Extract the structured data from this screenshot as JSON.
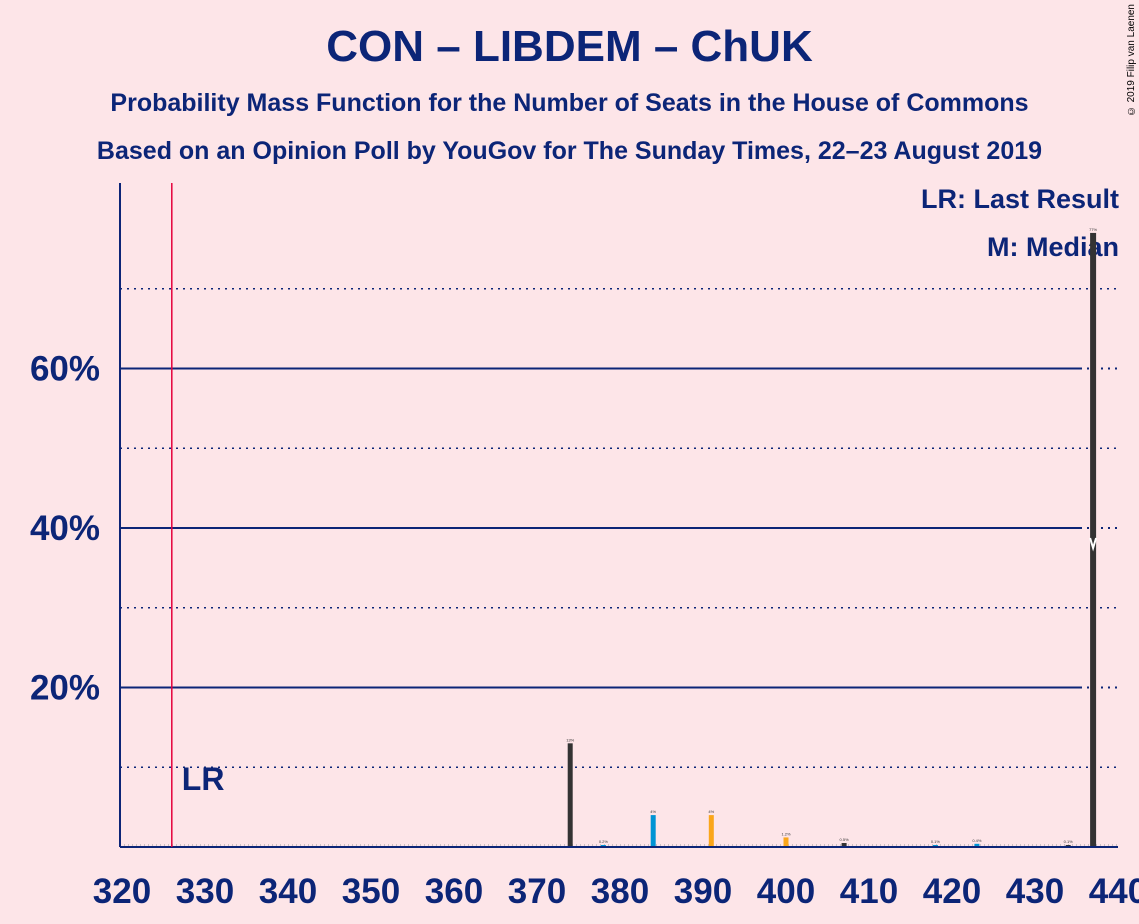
{
  "header": {
    "title": "CON – LIBDEM – ChUK",
    "subtitle1": "Probability Mass Function for the Number of Seats in the House of Commons",
    "subtitle2": "Based on an Opinion Poll by YouGov for The Sunday Times, 22–23 August 2019",
    "copyright": "© 2019 Filip van Laenen"
  },
  "legend": {
    "last_result": "LR: Last Result",
    "median": "M: Median"
  },
  "chart_data": {
    "type": "bar",
    "title": "CON – LIBDEM – ChUK",
    "xlabel": "",
    "ylabel": "",
    "xlim": [
      320,
      440
    ],
    "ylim": [
      0,
      82
    ],
    "x_ticks": [
      320,
      330,
      340,
      350,
      360,
      370,
      380,
      390,
      400,
      410,
      420,
      430,
      440
    ],
    "y_ticks": [
      {
        "value": 20,
        "label": "20%"
      },
      {
        "value": 40,
        "label": "40%"
      },
      {
        "value": 60,
        "label": "60%"
      }
    ],
    "minor_gridlines": [
      10,
      30,
      50,
      70
    ],
    "last_result": {
      "seats": 326,
      "label": "LR"
    },
    "median": {
      "seats": 437,
      "label": "M"
    },
    "colors": {
      "background": "#FDE5E8",
      "axis": "#0C2577",
      "con": "#333333",
      "libdem": "#FAA61A",
      "chuk": "#0094D4",
      "last_result": "#E4003B",
      "median_marker": "#FFFFFF"
    },
    "bars": [
      {
        "x": 374,
        "value": 13,
        "color": "#333333",
        "label": "13%"
      },
      {
        "x": 378,
        "value": 0.2,
        "color": "#0094D4",
        "label": "0.2%"
      },
      {
        "x": 384,
        "value": 4,
        "color": "#0094D4",
        "label": "4%"
      },
      {
        "x": 391,
        "value": 4,
        "color": "#FAA61A",
        "label": "4%"
      },
      {
        "x": 400,
        "value": 1.2,
        "color": "#FAA61A",
        "label": "1.2%"
      },
      {
        "x": 407,
        "value": 0.5,
        "color": "#333333",
        "label": "0.5%"
      },
      {
        "x": 418,
        "value": 0.1,
        "color": "#0094D4",
        "label": "0.1%"
      },
      {
        "x": 423,
        "value": 0.4,
        "color": "#0094D4",
        "label": "0.4%"
      },
      {
        "x": 434,
        "value": 0.1,
        "color": "#333333",
        "label": "0.1%"
      },
      {
        "x": 437,
        "value": 77,
        "color": "#333333",
        "label": "77%"
      }
    ]
  }
}
